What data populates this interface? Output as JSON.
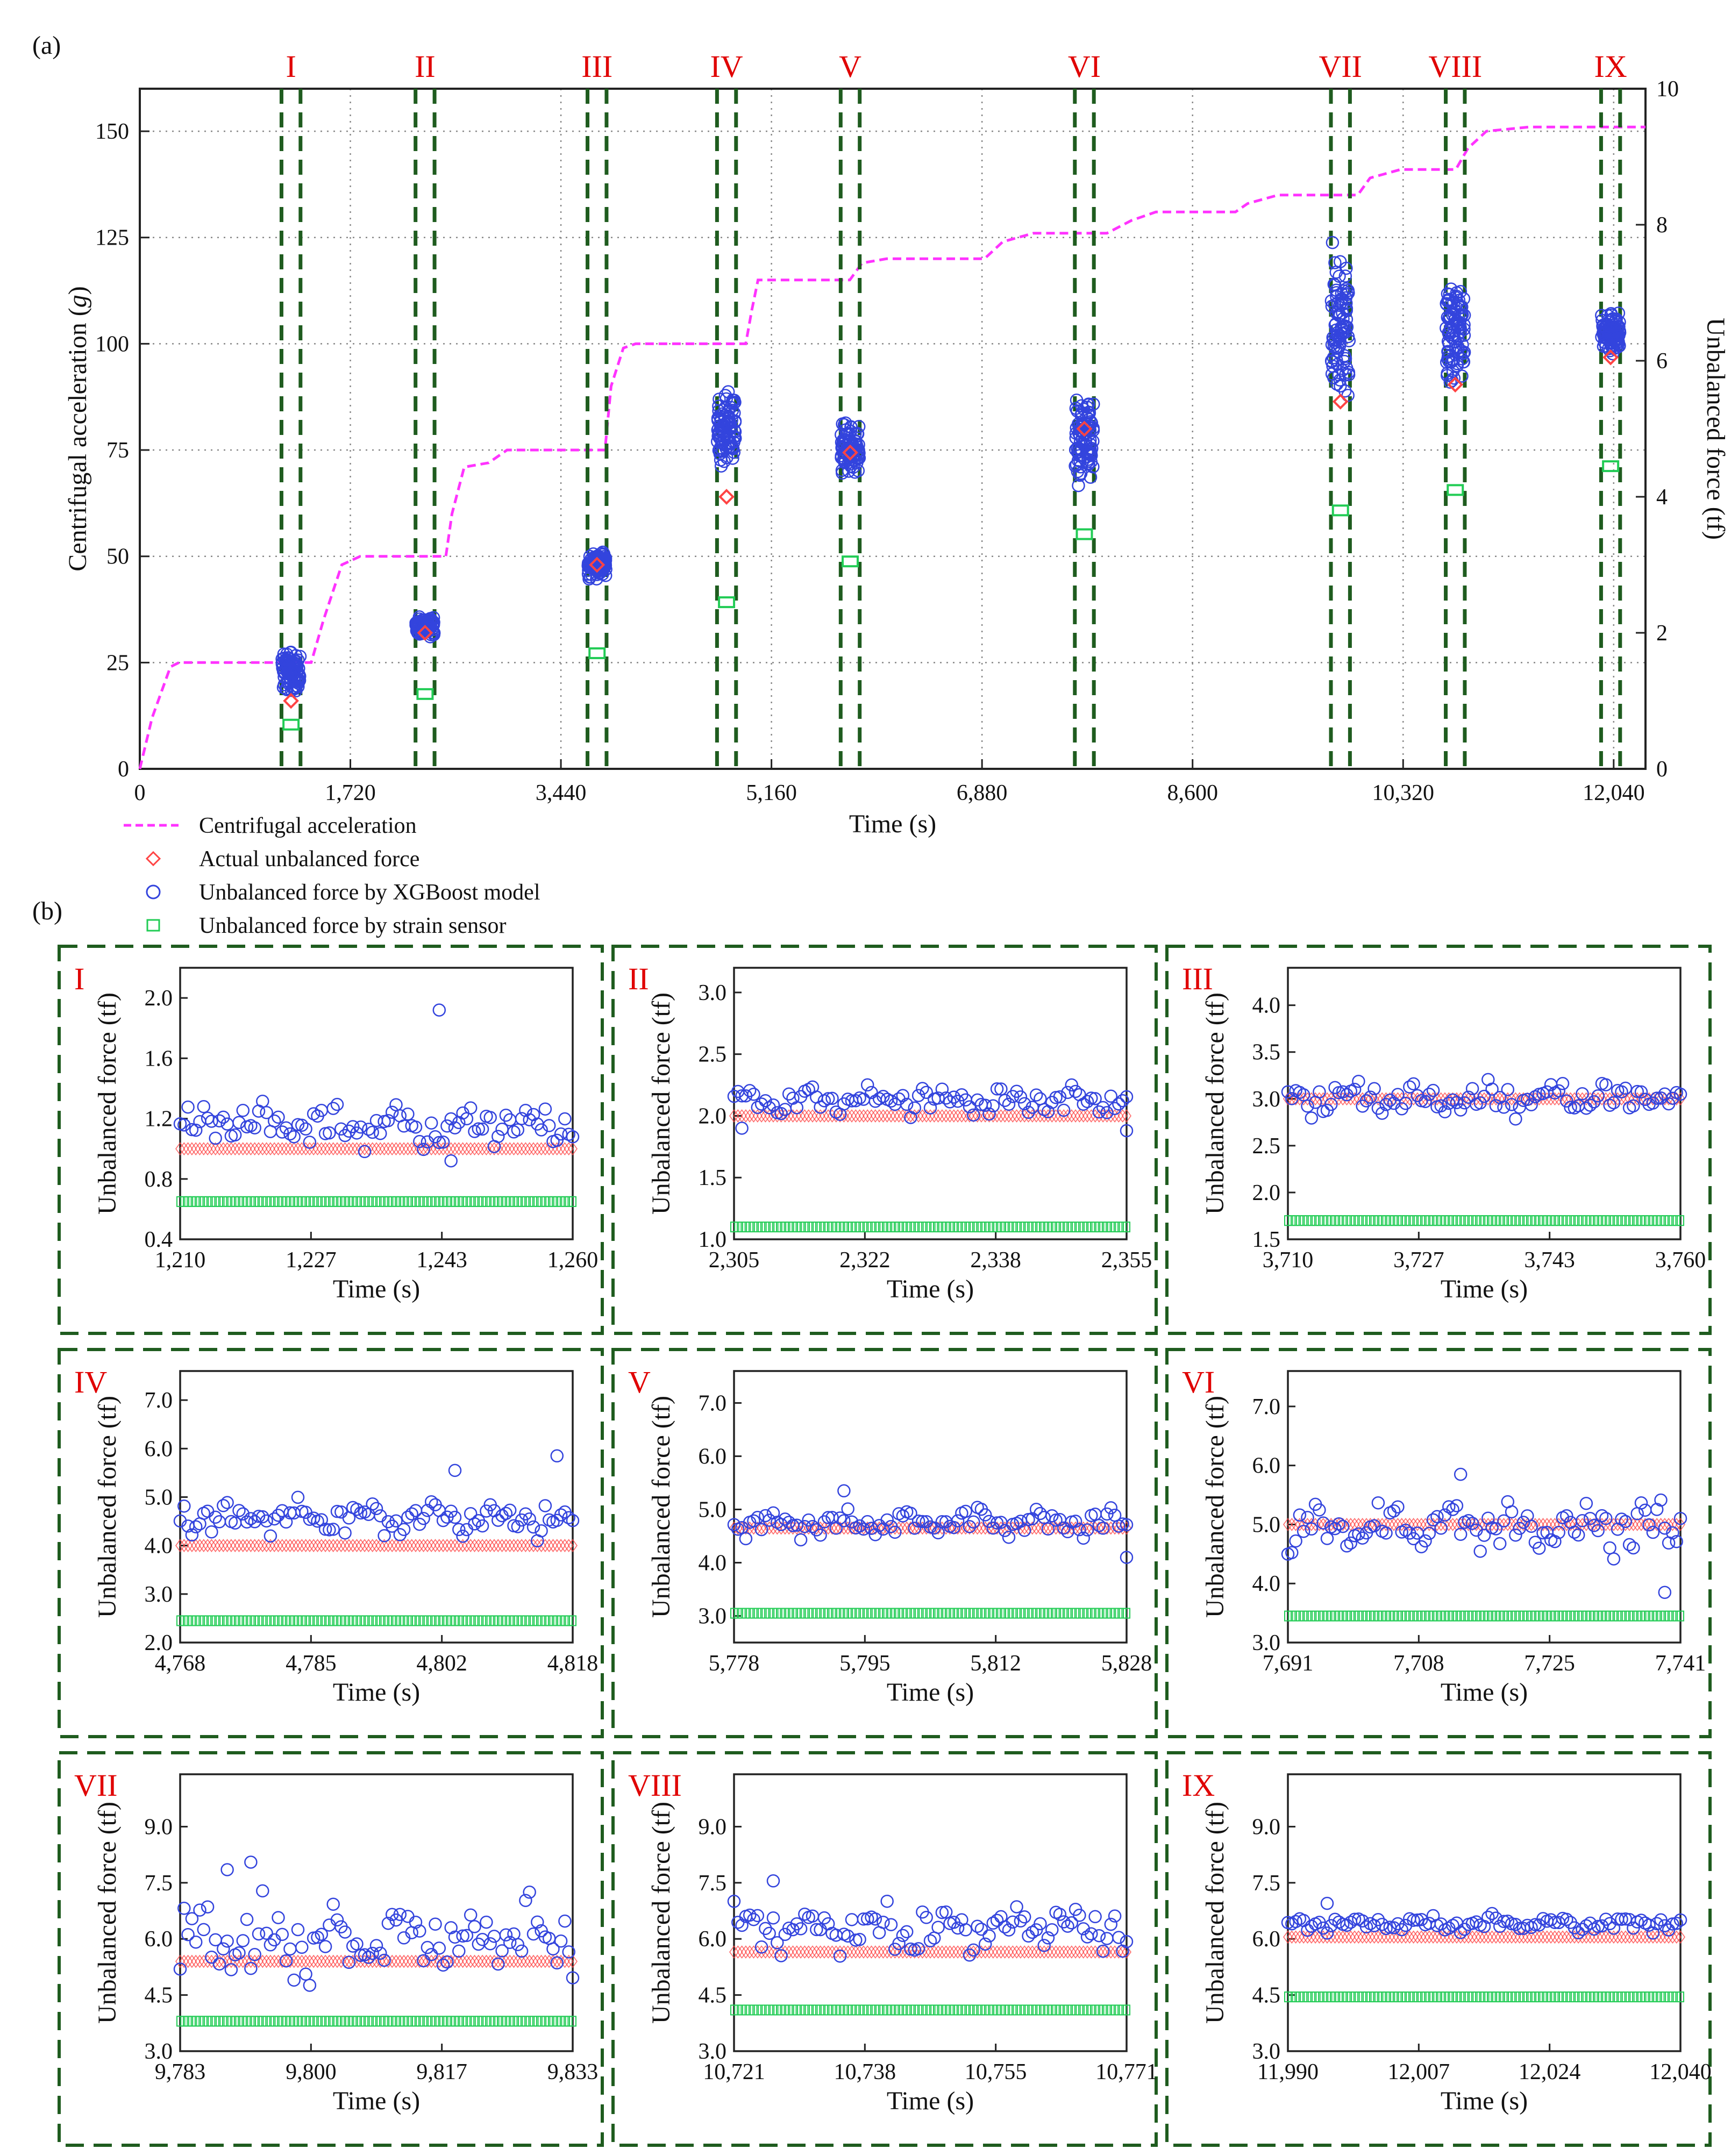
{
  "figure": {
    "panel_a_label": "(a)",
    "panel_b_label": "(b)",
    "colors": {
      "accel": "#ff33ff",
      "actual": "#ff4444",
      "xgb": "#3344dd",
      "strain": "#22cc55",
      "window": "#1f5c1f",
      "roman": "#e00000"
    }
  },
  "chart_data": [
    {
      "id": "a",
      "type": "line+scatter",
      "xlabel": "Time (s)",
      "ylabel": "Centrifugal acceleration (g)",
      "ylabel_right": "Unbalanced force (tf)",
      "xlim": [
        0,
        12300
      ],
      "ylim": [
        0,
        160
      ],
      "ylim_right": [
        0,
        10
      ],
      "x_ticks": [
        0,
        1720,
        3440,
        5160,
        6880,
        8600,
        10320,
        12040
      ],
      "x_tick_labels": [
        "0",
        "1,720",
        "3,440",
        "5,160",
        "6,880",
        "8,600",
        "10,320",
        "12,040"
      ],
      "y_ticks": [
        0,
        25,
        50,
        75,
        100,
        125,
        150
      ],
      "y_tick_labels": [
        "0",
        "25",
        "50",
        "75",
        "100",
        "125",
        "150"
      ],
      "y_right_ticks": [
        0,
        2,
        4,
        6,
        8,
        10
      ],
      "y_right_tick_labels": [
        "0",
        "2",
        "4",
        "6",
        "8",
        "10"
      ],
      "grid": true,
      "legend": [
        "Centrifugal acceleration",
        "Actual unbalanced force",
        "Unbalanced force by XGBoost model",
        "Unbalanced force by strain sensor"
      ],
      "acceleration": {
        "x": [
          0,
          100,
          250,
          320,
          1400,
          1500,
          1650,
          1800,
          2500,
          2550,
          2650,
          2850,
          3000,
          3800,
          3850,
          3950,
          4050,
          4950,
          5000,
          5050,
          5800,
          5900,
          6100,
          6900,
          7050,
          7300,
          7900,
          8100,
          8300,
          8950,
          9050,
          9300,
          9950,
          10050,
          10300,
          10750,
          10850,
          11000,
          11350,
          12300
        ],
        "y": [
          0,
          12,
          24,
          25,
          25,
          35,
          48,
          50,
          50,
          60,
          71,
          72,
          75,
          75,
          90,
          99,
          100,
          100,
          108,
          115,
          115,
          119,
          120,
          120,
          124,
          126,
          126,
          129,
          131,
          131,
          133,
          135,
          135,
          139,
          141,
          141,
          146,
          150,
          151,
          151
        ]
      },
      "windows": [
        {
          "label": "I",
          "start": 1210,
          "end": 1260
        },
        {
          "label": "II",
          "start": 2305,
          "end": 2355
        },
        {
          "label": "III",
          "start": 3710,
          "end": 3760
        },
        {
          "label": "IV",
          "start": 4768,
          "end": 4818
        },
        {
          "label": "V",
          "start": 5778,
          "end": 5828
        },
        {
          "label": "VI",
          "start": 7691,
          "end": 7741
        },
        {
          "label": "VII",
          "start": 9783,
          "end": 9833
        },
        {
          "label": "VIII",
          "start": 10721,
          "end": 10771
        },
        {
          "label": "IX",
          "start": 11990,
          "end": 12040
        }
      ],
      "actual_force_tf": [
        1.0,
        2.0,
        3.0,
        4.0,
        4.65,
        5.0,
        5.4,
        5.65,
        6.05
      ],
      "xgboost_range_tf": [
        [
          0.9,
          1.95
        ],
        [
          1.9,
          2.3
        ],
        [
          2.7,
          3.3
        ],
        [
          4.1,
          5.85
        ],
        [
          4.1,
          5.35
        ],
        [
          3.85,
          5.85
        ],
        [
          4.9,
          8.05
        ],
        [
          5.3,
          7.55
        ],
        [
          5.9,
          6.9
        ]
      ],
      "strain_force_tf": [
        0.65,
        1.1,
        1.7,
        2.45,
        3.05,
        3.45,
        3.8,
        4.1,
        4.45
      ]
    },
    {
      "id": "I",
      "type": "scatter",
      "xlabel": "Time (s)",
      "ylabel": "Unbalanced force (tf)",
      "xlim": [
        1210,
        1260
      ],
      "ylim": [
        0.4,
        2.2
      ],
      "x_tick_labels": [
        "1,210",
        "1,227",
        "1,243",
        "1,260"
      ],
      "y_ticks": [
        0.4,
        0.8,
        1.2,
        1.6,
        2.0
      ],
      "y_tick_labels": [
        "0.4",
        "0.8",
        "1.2",
        "1.6",
        "2.0"
      ],
      "actual": 1.0,
      "strain": 0.65,
      "xgb_center": 1.15,
      "xgb_spread": 0.12,
      "xgb_outliers": [
        [
          1243,
          1.92
        ],
        [
          1244.5,
          0.92
        ]
      ]
    },
    {
      "id": "II",
      "type": "scatter",
      "xlabel": "Time (s)",
      "ylabel": "Unbalanced force (tf)",
      "xlim": [
        2305,
        2355
      ],
      "ylim": [
        1.0,
        3.2
      ],
      "x_tick_labels": [
        "2,305",
        "2,322",
        "2,338",
        "2,355"
      ],
      "y_ticks": [
        1.0,
        1.5,
        2.0,
        2.5,
        3.0
      ],
      "y_tick_labels": [
        "1.0",
        "1.5",
        "2.0",
        "2.5",
        "3.0"
      ],
      "actual": 2.0,
      "strain": 1.1,
      "xgb_center": 2.12,
      "xgb_spread": 0.1,
      "xgb_outliers": [
        [
          2306,
          1.9
        ],
        [
          2355,
          1.88
        ]
      ]
    },
    {
      "id": "III",
      "type": "scatter",
      "xlabel": "Time (s)",
      "ylabel": "Unbalanced force (tf)",
      "xlim": [
        3710,
        3760
      ],
      "ylim": [
        1.5,
        4.4
      ],
      "x_tick_labels": [
        "3,710",
        "3,727",
        "3,743",
        "3,760"
      ],
      "y_ticks": [
        1.5,
        2.0,
        2.5,
        3.0,
        3.5,
        4.0
      ],
      "y_tick_labels": [
        "1.5",
        "2.0",
        "2.5",
        "3.0",
        "3.5",
        "4.0"
      ],
      "actual": 3.0,
      "strain": 1.7,
      "xgb_center": 3.0,
      "xgb_spread": 0.15,
      "xgb_outliers": []
    },
    {
      "id": "IV",
      "type": "scatter",
      "xlabel": "Time (s)",
      "ylabel": "Unbalanced force (tf)",
      "xlim": [
        4768,
        4818
      ],
      "ylim": [
        2.0,
        7.6
      ],
      "x_tick_labels": [
        "4,768",
        "4,785",
        "4,802",
        "4,818"
      ],
      "y_ticks": [
        2.0,
        3.0,
        4.0,
        5.0,
        6.0,
        7.0
      ],
      "y_tick_labels": [
        "2.0",
        "3.0",
        "4.0",
        "5.0",
        "6.0",
        "7.0"
      ],
      "actual": 4.0,
      "strain": 2.45,
      "xgb_center": 4.55,
      "xgb_spread": 0.3,
      "xgb_outliers": [
        [
          4803,
          5.55
        ],
        [
          4816,
          5.85
        ]
      ]
    },
    {
      "id": "V",
      "type": "scatter",
      "xlabel": "Time (s)",
      "ylabel": "Unbalanced force (tf)",
      "xlim": [
        5778,
        5828
      ],
      "ylim": [
        2.5,
        7.6
      ],
      "x_tick_labels": [
        "5,778",
        "5,795",
        "5,812",
        "5,828"
      ],
      "y_ticks": [
        3.0,
        4.0,
        5.0,
        6.0,
        7.0
      ],
      "y_tick_labels": [
        "3.0",
        "4.0",
        "5.0",
        "6.0",
        "7.0"
      ],
      "actual": 4.65,
      "strain": 3.05,
      "xgb_center": 4.75,
      "xgb_spread": 0.22,
      "xgb_outliers": [
        [
          5792,
          5.35
        ],
        [
          5828,
          4.1
        ]
      ]
    },
    {
      "id": "VI",
      "type": "scatter",
      "xlabel": "Time (s)",
      "ylabel": "Unbalanced force (tf)",
      "xlim": [
        7691,
        7741
      ],
      "ylim": [
        3.0,
        7.6
      ],
      "x_tick_labels": [
        "7,691",
        "7,708",
        "7,725",
        "7,741"
      ],
      "y_ticks": [
        3.0,
        4.0,
        5.0,
        6.0,
        7.0
      ],
      "y_tick_labels": [
        "3.0",
        "4.0",
        "5.0",
        "6.0",
        "7.0"
      ],
      "actual": 5.0,
      "strain": 3.45,
      "xgb_center": 4.95,
      "xgb_spread": 0.35,
      "xgb_outliers": [
        [
          7713,
          5.85
        ],
        [
          7739,
          3.85
        ]
      ]
    },
    {
      "id": "VII",
      "type": "scatter",
      "xlabel": "Time (s)",
      "ylabel": "Unbalanced force (tf)",
      "xlim": [
        9783,
        9833
      ],
      "ylim": [
        3.0,
        10.4
      ],
      "x_tick_labels": [
        "9,783",
        "9,800",
        "9,817",
        "9,833"
      ],
      "y_ticks": [
        3.0,
        4.5,
        6.0,
        7.5,
        9.0
      ],
      "y_tick_labels": [
        "3.0",
        "4.5",
        "6.0",
        "7.5",
        "9.0"
      ],
      "actual": 5.4,
      "strain": 3.8,
      "xgb_center": 6.0,
      "xgb_spread": 0.9,
      "xgb_outliers": [
        [
          9792,
          8.05
        ],
        [
          9789,
          7.85
        ]
      ]
    },
    {
      "id": "VIII",
      "type": "scatter",
      "xlabel": "Time (s)",
      "ylabel": "Unbalanced force (tf)",
      "xlim": [
        10721,
        10771
      ],
      "ylim": [
        3.0,
        10.4
      ],
      "x_tick_labels": [
        "10,721",
        "10,738",
        "10,755",
        "10,771"
      ],
      "y_ticks": [
        3.0,
        4.5,
        6.0,
        7.5,
        9.0
      ],
      "y_tick_labels": [
        "3.0",
        "4.5",
        "6.0",
        "7.5",
        "9.0"
      ],
      "actual": 5.65,
      "strain": 4.1,
      "xgb_center": 6.3,
      "xgb_spread": 0.55,
      "xgb_outliers": [
        [
          10726,
          7.55
        ]
      ]
    },
    {
      "id": "IX",
      "type": "scatter",
      "xlabel": "Time (s)",
      "ylabel": "Unbalanced force (tf)",
      "xlim": [
        11990,
        12040
      ],
      "ylim": [
        3.0,
        10.4
      ],
      "x_tick_labels": [
        "11,990",
        "12,007",
        "12,024",
        "12,040"
      ],
      "y_ticks": [
        3.0,
        4.5,
        6.0,
        7.5,
        9.0
      ],
      "y_tick_labels": [
        "3.0",
        "4.5",
        "6.0",
        "7.5",
        "9.0"
      ],
      "actual": 6.05,
      "strain": 4.45,
      "xgb_center": 6.4,
      "xgb_spread": 0.2,
      "xgb_outliers": [
        [
          11995,
          6.95
        ]
      ]
    }
  ]
}
